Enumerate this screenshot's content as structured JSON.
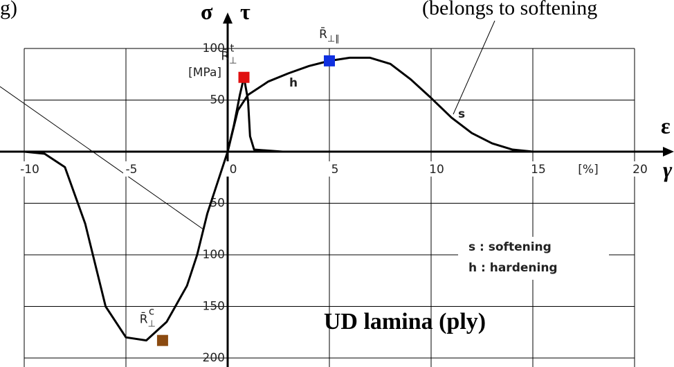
{
  "chart_data": {
    "type": "line",
    "title": "UD lamina (ply)",
    "y_label": "σ",
    "y_label_2": "τ",
    "y_unit": "[MPa]",
    "x_label": "ε",
    "x_label_2": "γ",
    "x_unit": "[%]",
    "xlim": [
      -10,
      20
    ],
    "xticks": [
      -10,
      -5,
      0,
      5,
      10,
      15,
      20
    ],
    "ylim": [
      -200,
      100
    ],
    "yticks": [
      100,
      50,
      {
        "value": -50,
        "label": "50"
      },
      {
        "value": -100,
        "label": "100"
      },
      {
        "value": -150,
        "label": "150"
      },
      {
        "value": -200,
        "label": "200"
      }
    ],
    "grid": true,
    "series": [
      {
        "color": "#000000",
        "x": [
          0,
          0.3,
          0.6,
          0.8,
          1,
          1.1,
          1.3,
          2.7
        ],
        "values": [
          0,
          25,
          55,
          72,
          50,
          15,
          2,
          0
        ]
      },
      {
        "color": "#000000",
        "x": [
          0,
          0.5,
          1,
          2,
          3,
          4,
          5,
          6,
          7,
          8,
          9,
          10,
          11,
          12,
          13,
          14,
          15
        ],
        "values": [
          0,
          40,
          55,
          68,
          76,
          83,
          88,
          91,
          91,
          85,
          70,
          52,
          33,
          18,
          8,
          2,
          0
        ]
      },
      {
        "color": "#000000",
        "x": [
          -10,
          -9,
          -8,
          -7,
          -6,
          -5,
          -4,
          -3,
          -2,
          -1.5,
          -1,
          -0.5,
          0
        ],
        "values": [
          0,
          -2,
          -15,
          -70,
          -150,
          -180,
          -183,
          -165,
          -130,
          -100,
          -60,
          -30,
          0
        ]
      }
    ],
    "markers": [
      {
        "x": 0.8,
        "y": 72,
        "color": "#e01010",
        "label": "R̄",
        "sub": "⊥",
        "sup": "t"
      },
      {
        "x": 5,
        "y": 88,
        "color": "#1030e0",
        "label": "R̄",
        "sub": "⊥∥"
      },
      {
        "x": -3.2,
        "y": -183,
        "color": "#8b4a10",
        "label": "R̄",
        "sub": "⊥",
        "sup": "c"
      }
    ],
    "curve_labels": [
      "h",
      "s"
    ],
    "legend_lines": [
      "s : softening",
      "h : hardening"
    ],
    "cut_texts": [
      "g)",
      "(belongs to softening"
    ]
  }
}
